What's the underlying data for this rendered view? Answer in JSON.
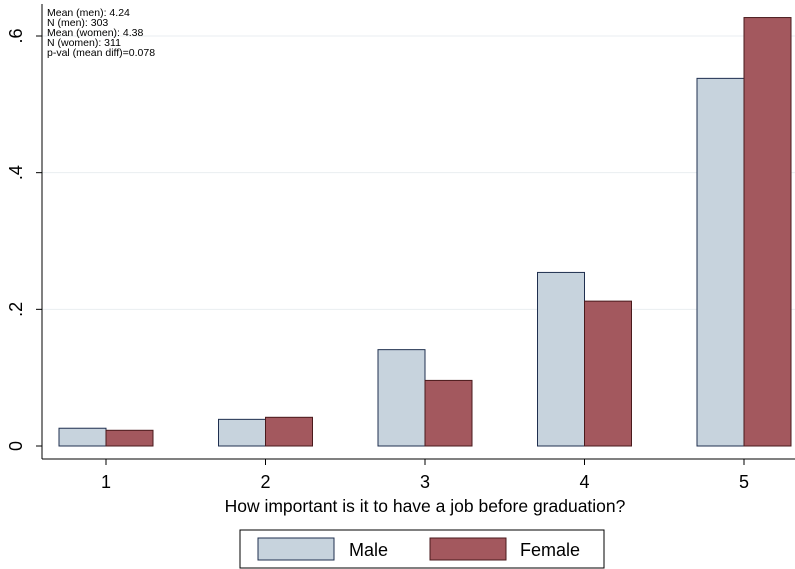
{
  "chart_data": {
    "type": "bar",
    "categories": [
      "1",
      "2",
      "3",
      "4",
      "5"
    ],
    "series": [
      {
        "name": "Male",
        "color": "#c7d3dd",
        "values": [
          0.026,
          0.039,
          0.141,
          0.254,
          0.538
        ]
      },
      {
        "name": "Female",
        "color": "#a3585e",
        "values": [
          0.023,
          0.042,
          0.096,
          0.212,
          0.627
        ]
      }
    ],
    "xlabel": "How important is it to have a job before graduation?",
    "ylabel": "",
    "ylim": [
      0,
      0.6
    ],
    "yticks": [
      {
        "value": 0,
        "label": "0"
      },
      {
        "value": 0.2,
        "label": ".2"
      },
      {
        "value": 0.4,
        "label": ".4"
      },
      {
        "value": 0.6,
        "label": ".6"
      }
    ],
    "annotations": [
      "Mean (men): 4.24",
      "N (men):  303",
      "Mean (women): 4.38",
      "N (women):  311",
      "p-val (mean diff)=0.078"
    ],
    "grid": true,
    "legend_position": "bottom"
  }
}
